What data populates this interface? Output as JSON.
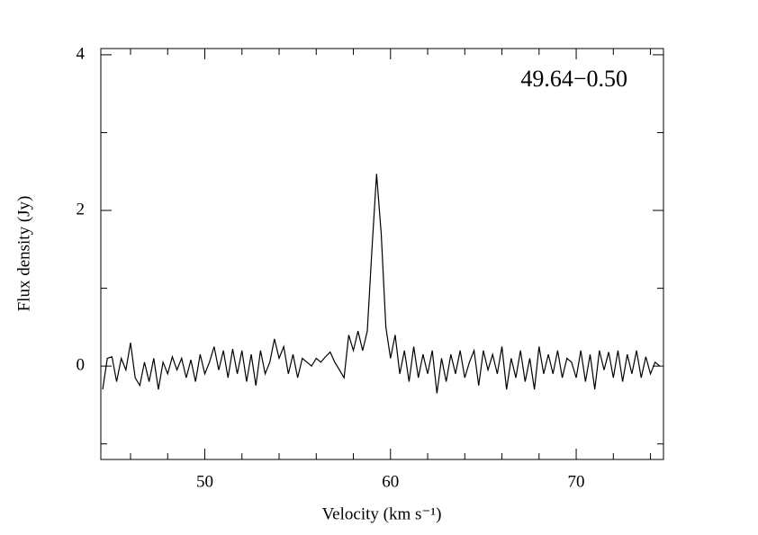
{
  "chart_data": {
    "type": "line",
    "annotation": "49.64−0.50",
    "xlabel": "Velocity (km s⁻¹)",
    "ylabel": "Flux density (Jy)",
    "xlim": [
      44.4,
      74.7
    ],
    "ylim": [
      -1.2,
      4.08
    ],
    "xticks": [
      50,
      60,
      70
    ],
    "xminor_ticks": [
      46,
      48,
      52,
      54,
      56,
      58,
      62,
      64,
      66,
      68,
      72,
      74
    ],
    "yticks": [
      0,
      2,
      4
    ],
    "yminor_ticks": [
      -1,
      1,
      3
    ],
    "color": "#000000",
    "x": [
      44.5,
      44.75,
      45,
      45.25,
      45.5,
      45.75,
      46,
      46.25,
      46.5,
      46.75,
      47,
      47.25,
      47.5,
      47.75,
      48,
      48.25,
      48.5,
      48.75,
      49,
      49.25,
      49.5,
      49.75,
      50,
      50.25,
      50.5,
      50.75,
      51,
      51.25,
      51.5,
      51.75,
      52,
      52.25,
      52.5,
      52.75,
      53,
      53.25,
      53.5,
      53.75,
      54,
      54.25,
      54.5,
      54.75,
      55,
      55.25,
      55.5,
      55.75,
      56,
      56.25,
      56.5,
      56.75,
      57,
      57.25,
      57.5,
      57.75,
      58,
      58.25,
      58.5,
      58.75,
      59,
      59.25,
      59.5,
      59.75,
      60,
      60.25,
      60.5,
      60.75,
      61,
      61.25,
      61.5,
      61.75,
      62,
      62.25,
      62.5,
      62.75,
      63,
      63.25,
      63.5,
      63.75,
      64,
      64.25,
      64.5,
      64.75,
      65,
      65.25,
      65.5,
      65.75,
      66,
      66.25,
      66.5,
      66.75,
      67,
      67.25,
      67.5,
      67.75,
      68,
      68.25,
      68.5,
      68.75,
      69,
      69.25,
      69.5,
      69.75,
      70,
      70.25,
      70.5,
      70.75,
      71,
      71.25,
      71.5,
      71.75,
      72,
      72.25,
      72.5,
      72.75,
      73,
      73.25,
      73.5,
      73.75,
      74,
      74.25,
      74.5
    ],
    "values": [
      -0.3,
      0.1,
      0.12,
      -0.2,
      0.1,
      -0.05,
      0.3,
      -0.15,
      -0.25,
      0.05,
      -0.2,
      0.1,
      -0.3,
      0.05,
      -0.1,
      0.12,
      -0.05,
      0.1,
      -0.15,
      0.08,
      -0.2,
      0.15,
      -0.1,
      0.05,
      0.25,
      -0.05,
      0.2,
      -0.15,
      0.22,
      -0.1,
      0.2,
      -0.2,
      0.15,
      -0.25,
      0.2,
      -0.1,
      0.05,
      0.35,
      0.1,
      0.25,
      -0.1,
      0.15,
      -0.15,
      0.1,
      0.05,
      0.0,
      0.1,
      0.05,
      0.12,
      0.18,
      0.05,
      -0.05,
      -0.15,
      0.4,
      0.2,
      0.45,
      0.2,
      0.45,
      1.5,
      2.47,
      1.7,
      0.5,
      0.1,
      0.4,
      -0.1,
      0.2,
      -0.2,
      0.25,
      -0.15,
      0.15,
      -0.1,
      0.2,
      -0.35,
      0.1,
      -0.2,
      0.15,
      -0.1,
      0.2,
      -0.15,
      0.05,
      0.2,
      -0.25,
      0.2,
      -0.05,
      0.15,
      -0.1,
      0.25,
      -0.3,
      0.1,
      -0.15,
      0.2,
      -0.2,
      0.1,
      -0.3,
      0.25,
      -0.1,
      0.15,
      -0.1,
      0.2,
      -0.15,
      0.1,
      0.05,
      -0.15,
      0.2,
      -0.2,
      0.15,
      -0.3,
      0.2,
      -0.05,
      0.18,
      -0.15,
      0.2,
      -0.2,
      0.15,
      -0.1,
      0.2,
      -0.15,
      0.12,
      -0.1,
      0.05,
      0.0
    ]
  }
}
